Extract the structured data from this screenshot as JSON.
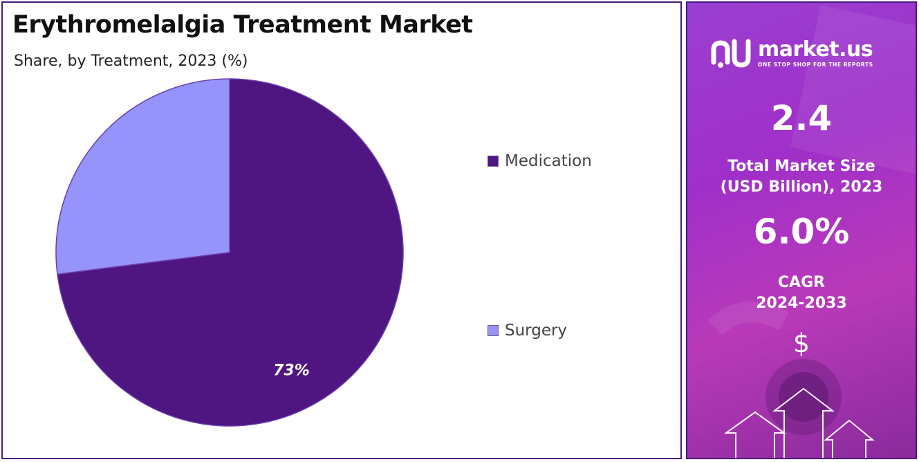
{
  "chart_data": {
    "type": "pie",
    "title": "Erythromelalgia Treatment Market",
    "subtitle": "Share, by Treatment, 2023 (%)",
    "slices": [
      {
        "name": "Medication",
        "value": 73,
        "label": "73%",
        "color": "#4f1580"
      },
      {
        "name": "Surgery",
        "value": 27,
        "label": "",
        "color": "#9693fb"
      }
    ],
    "legend_position": "right"
  },
  "sidebar": {
    "brand": "market.us",
    "tagline": "ONE STOP SHOP FOR THE REPORTS",
    "market_size_value": "2.4",
    "market_size_label_line1": "Total Market Size",
    "market_size_label_line2": "(USD Billion), 2023",
    "cagr_value": "6.0%",
    "cagr_label_line1": "CAGR",
    "cagr_label_line2": "2024-2033",
    "currency_symbol": "$"
  },
  "colors": {
    "accent": "#4f1580",
    "secondary": "#9693fb",
    "panel_border": "#4a1a80"
  }
}
